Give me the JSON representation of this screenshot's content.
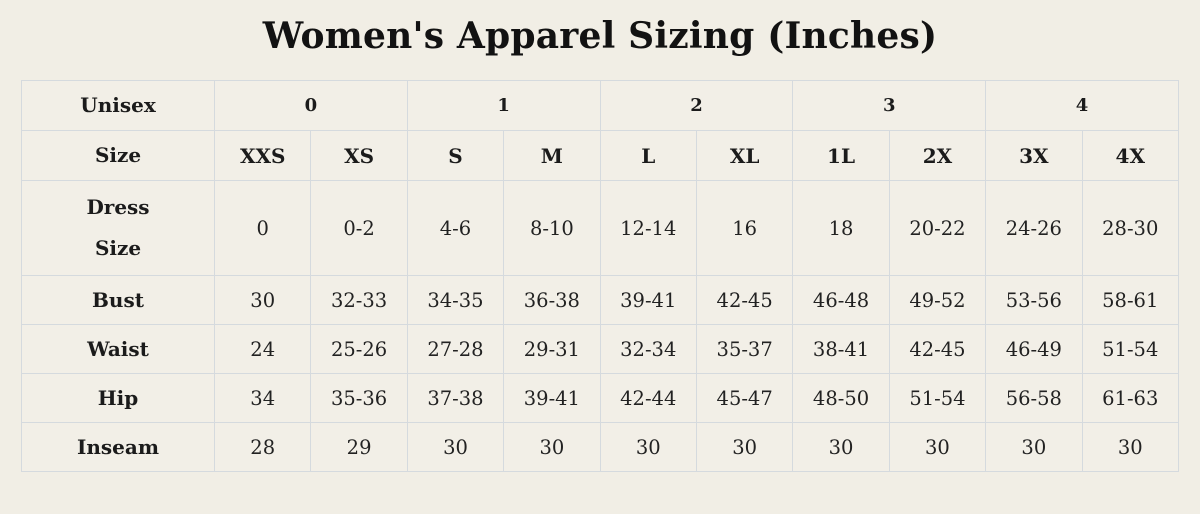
{
  "colors": {
    "bg": "#f1eee5",
    "cell-bg": "#f2efe7",
    "border": "#d5dade",
    "text": "#1b1b1b",
    "title": "#121212"
  },
  "chart_data": {
    "type": "table",
    "title": "Women's Apparel Sizing (Inches)",
    "group_row": {
      "label": "Unisex",
      "groups": [
        "0",
        "1",
        "2",
        "3",
        "4"
      ],
      "columns_per_group": 2
    },
    "size_row": {
      "label": "Size",
      "sizes": [
        "XXS",
        "XS",
        "S",
        "M",
        "L",
        "XL",
        "1L",
        "2X",
        "3X",
        "4X"
      ]
    },
    "rows": [
      {
        "label": "Dress Size",
        "values": [
          "0",
          "0-2",
          "4-6",
          "8-10",
          "12-14",
          "16",
          "18",
          "20-22",
          "24-26",
          "28-30"
        ]
      },
      {
        "label": "Bust",
        "values": [
          "30",
          "32-33",
          "34-35",
          "36-38",
          "39-41",
          "42-45",
          "46-48",
          "49-52",
          "53-56",
          "58-61"
        ]
      },
      {
        "label": "Waist",
        "values": [
          "24",
          "25-26",
          "27-28",
          "29-31",
          "32-34",
          "35-37",
          "38-41",
          "42-45",
          "46-49",
          "51-54"
        ]
      },
      {
        "label": "Hip",
        "values": [
          "34",
          "35-36",
          "37-38",
          "39-41",
          "42-44",
          "45-47",
          "48-50",
          "51-54",
          "56-58",
          "61-63"
        ]
      },
      {
        "label": "Inseam",
        "values": [
          "28",
          "29",
          "30",
          "30",
          "30",
          "30",
          "30",
          "30",
          "30",
          "30"
        ]
      }
    ]
  }
}
